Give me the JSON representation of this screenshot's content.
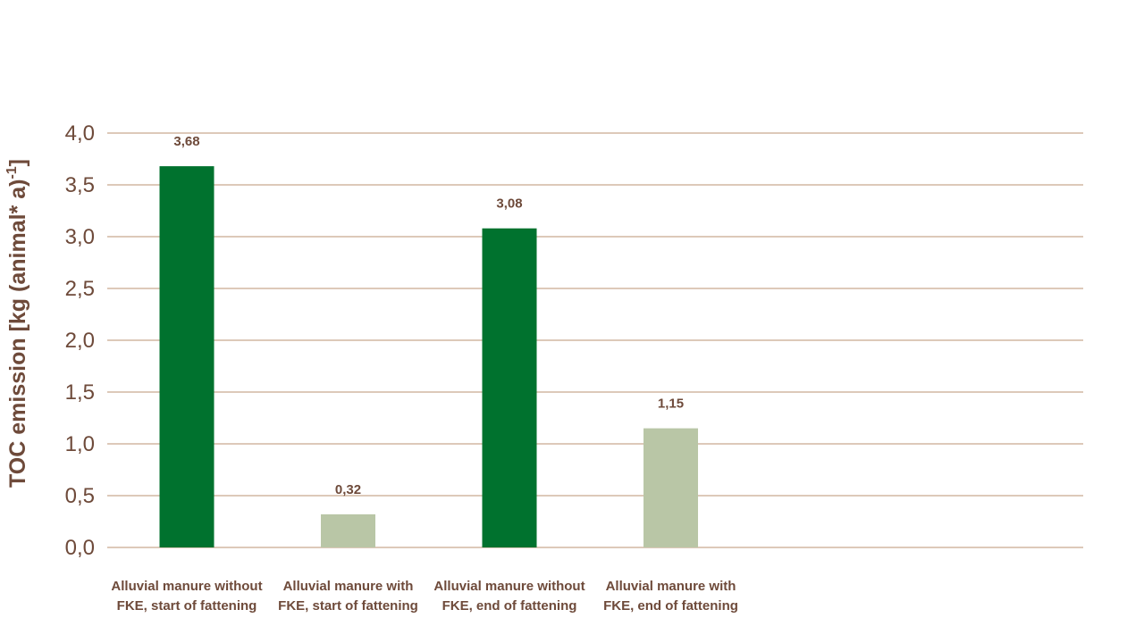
{
  "chart_data": {
    "type": "bar",
    "ylabel_main": "TOC emission [kg (animal* a)",
    "ylabel_sup": "-1",
    "ylabel_end": "]",
    "ylim": [
      0,
      4.0
    ],
    "yticks": [
      {
        "value": 0.0,
        "label": "0,0"
      },
      {
        "value": 0.5,
        "label": "0,5"
      },
      {
        "value": 1.0,
        "label": "1,0"
      },
      {
        "value": 1.5,
        "label": "1,5"
      },
      {
        "value": 2.0,
        "label": "2,0"
      },
      {
        "value": 2.5,
        "label": "2,5"
      },
      {
        "value": 3.0,
        "label": "3,0"
      },
      {
        "value": 3.5,
        "label": "3,5"
      },
      {
        "value": 4.0,
        "label": "4,0"
      }
    ],
    "grid": true,
    "categories": [
      {
        "line1": "Alluvial manure without",
        "line2": "FKE, start of fattening"
      },
      {
        "line1": "Alluvial manure with",
        "line2": "FKE, start of fattening"
      },
      {
        "line1": "Alluvial manure without",
        "line2": "FKE, end of fattening"
      },
      {
        "line1": "Alluvial manure with",
        "line2": "FKE, end of fattening"
      }
    ],
    "values": [
      3.68,
      0.32,
      3.08,
      1.15
    ],
    "value_labels": [
      "3,68",
      "0,32",
      "3,08",
      "1,15"
    ],
    "colors": [
      "#00722e",
      "#b9c6a6",
      "#00722e",
      "#b9c6a6"
    ],
    "grid_color": "#d2b7a2",
    "text_color": "#6e4a3a"
  }
}
